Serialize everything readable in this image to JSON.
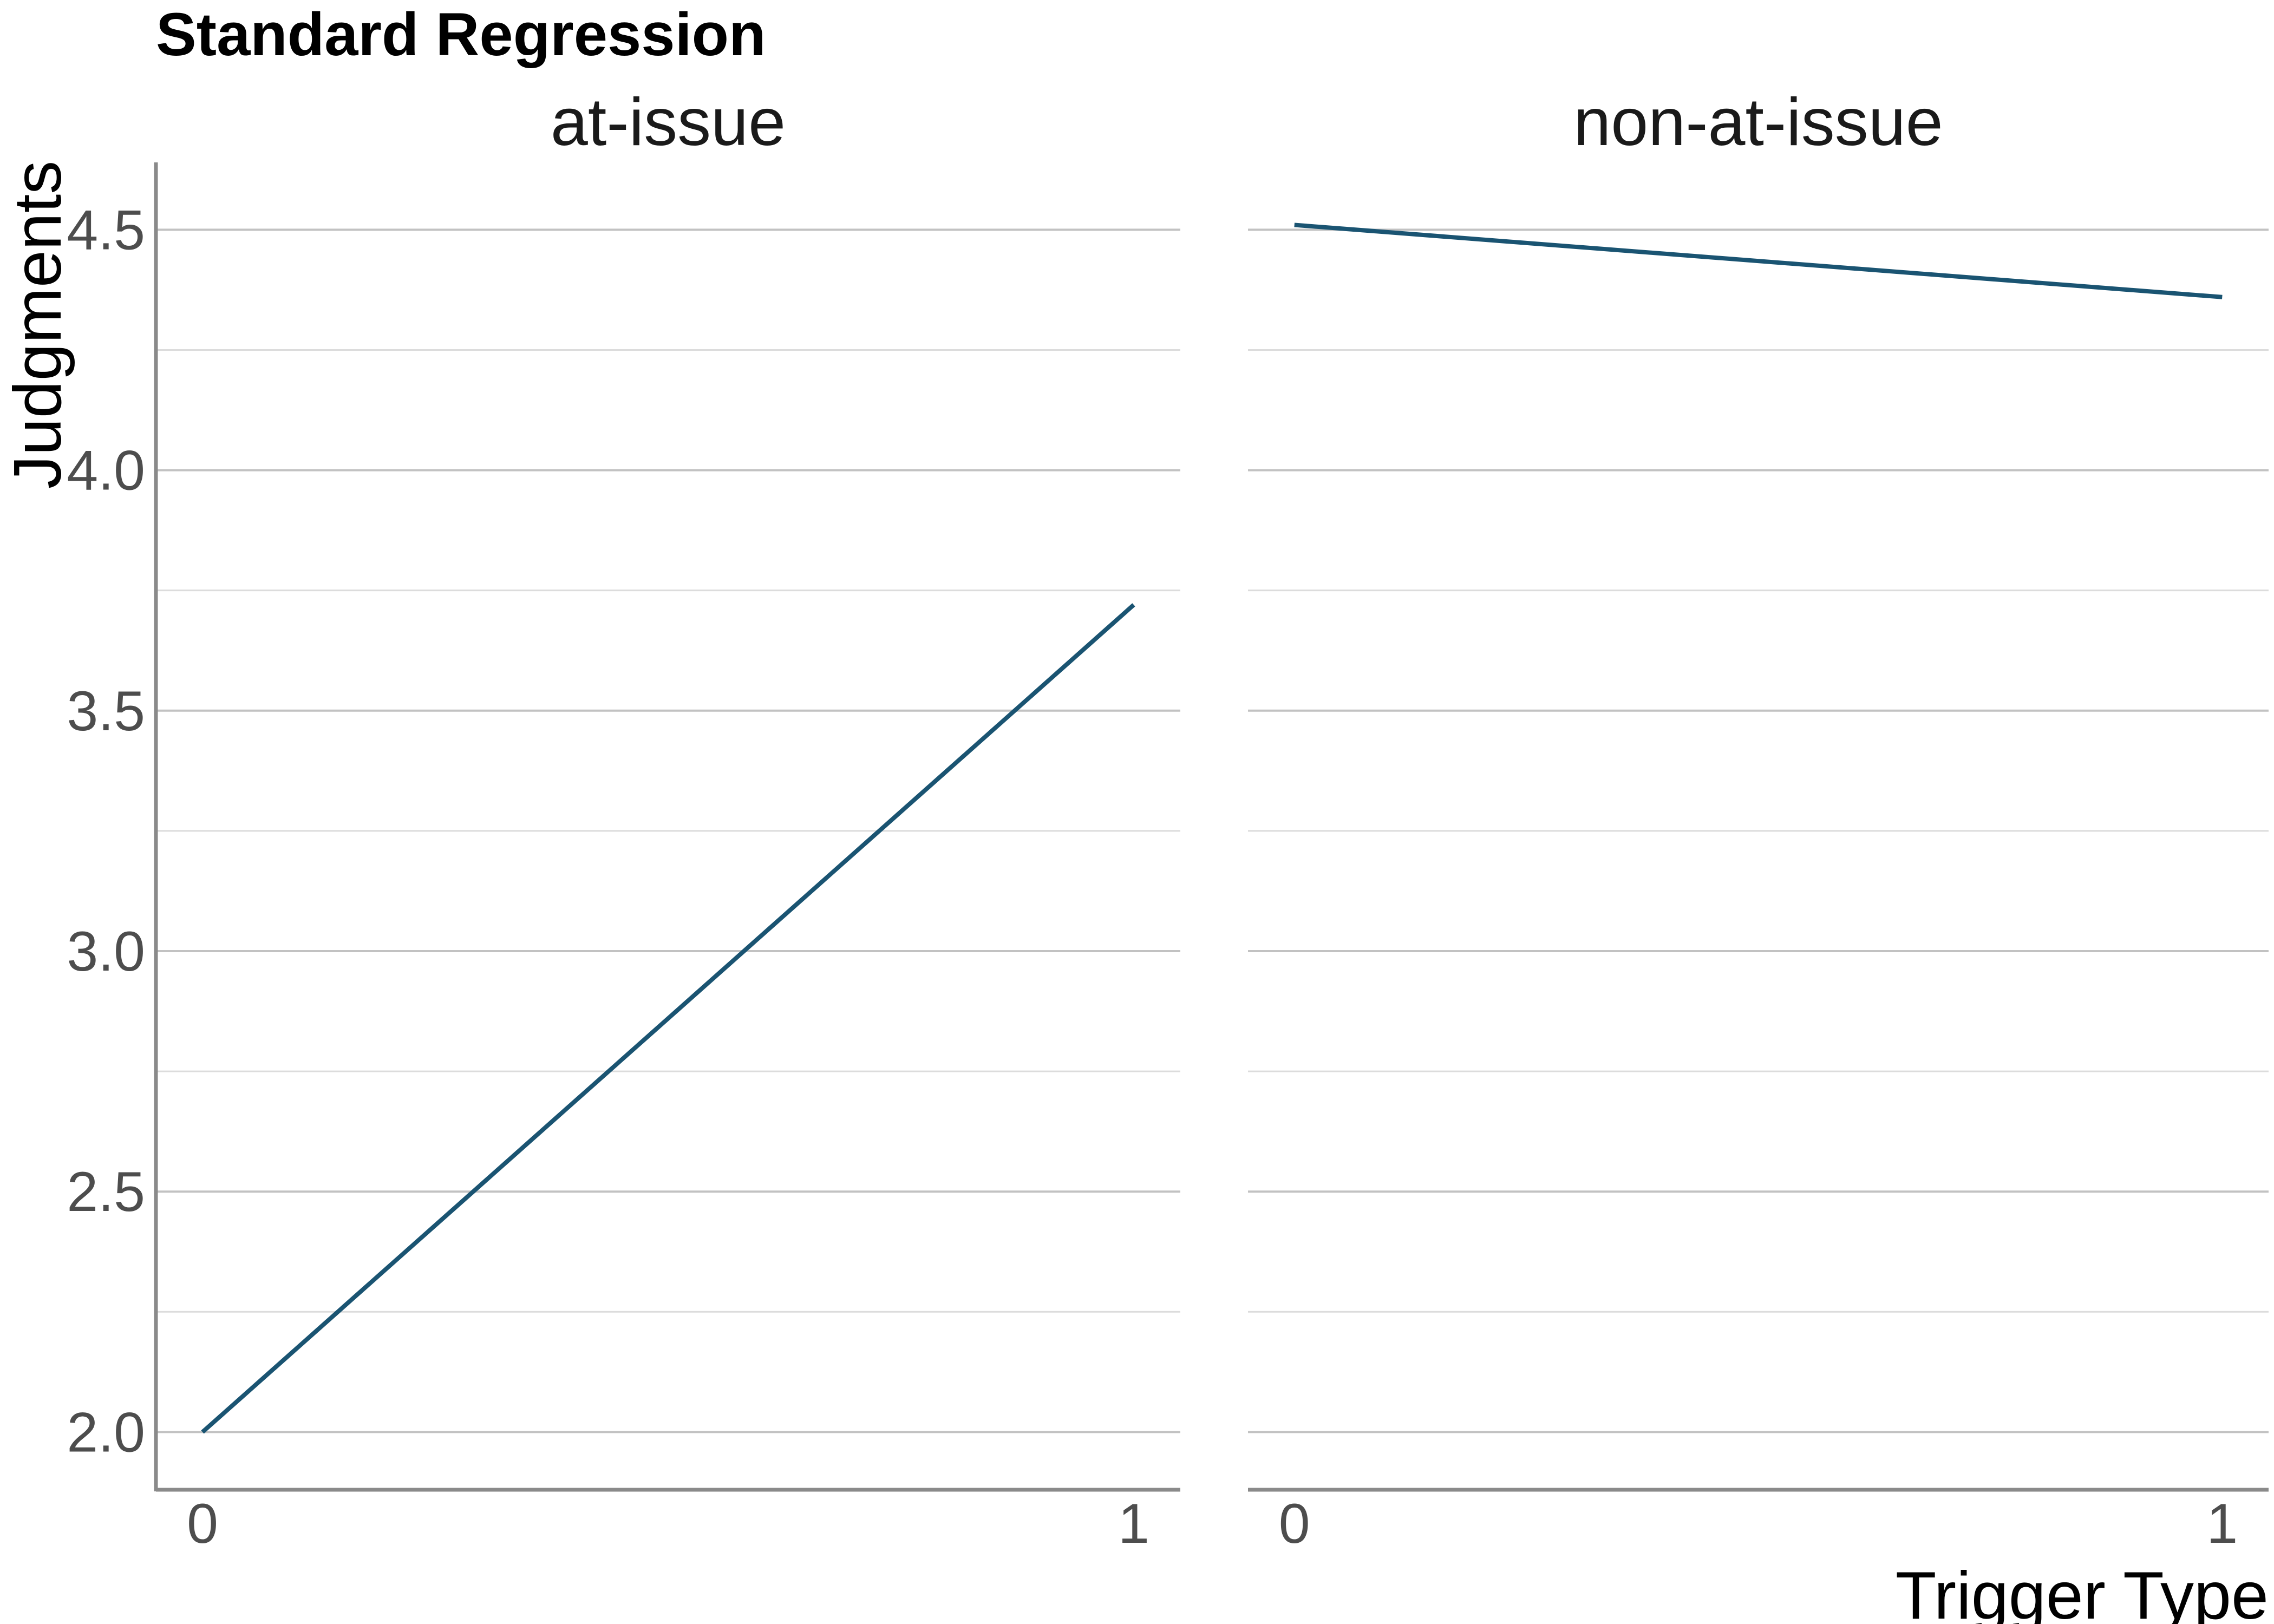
{
  "chart_data": {
    "type": "line",
    "title": "Standard Regression",
    "xlabel": "Trigger Type",
    "ylabel": "Judgments",
    "ylim": [
      1.88,
      4.64
    ],
    "y_major_ticks": [
      2.0,
      2.5,
      3.0,
      3.5,
      4.0,
      4.5
    ],
    "y_tick_labels": [
      "2.0",
      "2.5",
      "3.0",
      "3.5",
      "4.0",
      "4.5"
    ],
    "y_minor_ticks": [
      2.25,
      2.75,
      3.25,
      3.75,
      4.25
    ],
    "x_ticks": [
      0,
      1
    ],
    "x_tick_labels": [
      "0",
      "1"
    ],
    "xlim": [
      -0.05,
      1.05
    ],
    "grid": "horizontal",
    "line_color": "#1a5472",
    "panels": [
      {
        "label": "at-issue",
        "x": [
          0,
          1
        ],
        "y": [
          2.0,
          3.72
        ]
      },
      {
        "label": "non-at-issue",
        "x": [
          0,
          1
        ],
        "y": [
          4.51,
          4.36
        ]
      }
    ]
  }
}
